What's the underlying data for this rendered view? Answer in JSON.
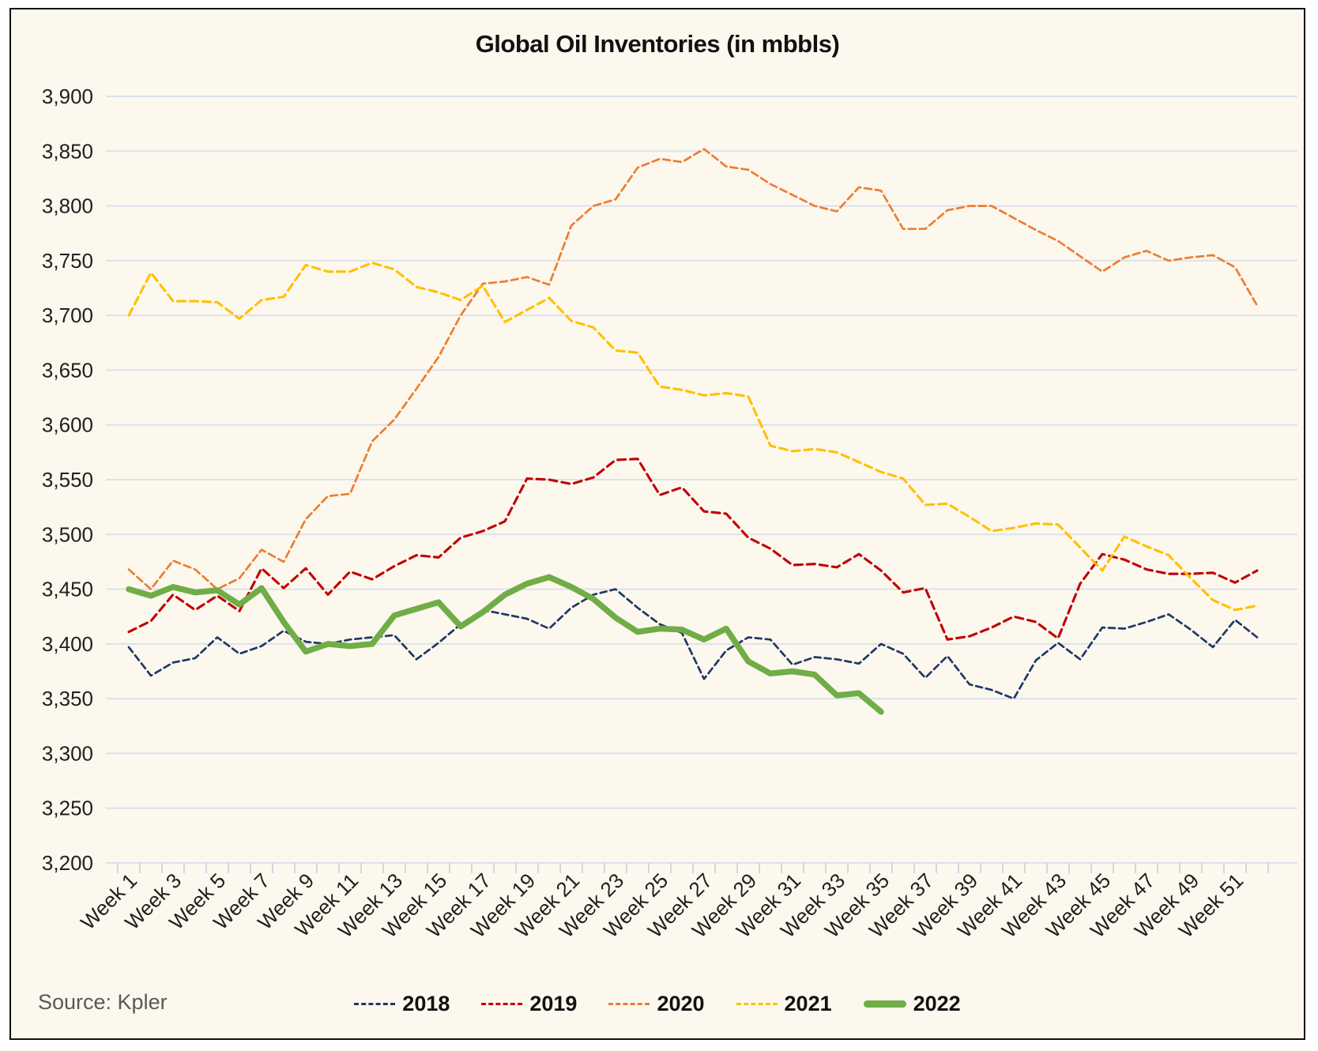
{
  "source_note": "Source: Kpler",
  "colors": {
    "background": "#FDF8EE",
    "border": "#111111",
    "gridline": "#DCE1EC",
    "tick": "#C9CEDA",
    "axis_text": "#1F1F1F",
    "title_text": "#111111",
    "source_text": "#595959"
  },
  "chart_data": {
    "type": "line",
    "title": "Global Oil Inventories (in mbbls)",
    "xlabel": "",
    "ylabel": "",
    "ylim": [
      3200,
      3900
    ],
    "ytick_step": 50,
    "grid": true,
    "legend_position": "bottom",
    "x_label_interval": 2,
    "x_categories": [
      "Week 1",
      "Week 2",
      "Week 3",
      "Week 4",
      "Week 5",
      "Week 6",
      "Week 7",
      "Week 8",
      "Week 9",
      "Week 10",
      "Week 11",
      "Week 12",
      "Week 13",
      "Week 14",
      "Week 15",
      "Week 16",
      "Week 17",
      "Week 18",
      "Week 19",
      "Week 20",
      "Week 21",
      "Week 22",
      "Week 23",
      "Week 24",
      "Week 25",
      "Week 26",
      "Week 27",
      "Week 28",
      "Week 29",
      "Week 30",
      "Week 31",
      "Week 32",
      "Week 33",
      "Week 34",
      "Week 35",
      "Week 36",
      "Week 37",
      "Week 38",
      "Week 39",
      "Week 40",
      "Week 41",
      "Week 42",
      "Week 43",
      "Week 44",
      "Week 45",
      "Week 46",
      "Week 47",
      "Week 48",
      "Week 49",
      "Week 50",
      "Week 51",
      "Week 52"
    ],
    "series": [
      {
        "name": "2018",
        "color": "#1F3864",
        "style": "dashed",
        "width": 2.7,
        "dash": "8 5",
        "values": [
          3397,
          3371,
          3383,
          3387,
          3406,
          3391,
          3398,
          3412,
          3402,
          3400,
          3404,
          3406,
          3408,
          3386,
          3401,
          3418,
          3431,
          3427,
          3423,
          3414,
          3433,
          3445,
          3450,
          3433,
          3418,
          3410,
          3368,
          3394,
          3406,
          3404,
          3381,
          3388,
          3386,
          3382,
          3400,
          3391,
          3369,
          3389,
          3363,
          3358,
          3350,
          3385,
          3401,
          3386,
          3415,
          3414,
          3420,
          3427,
          3413,
          3397,
          3422,
          3406
        ]
      },
      {
        "name": "2019",
        "color": "#C00000",
        "style": "dashed",
        "width": 3.1,
        "dash": "10 6",
        "values": [
          3411,
          3421,
          3445,
          3431,
          3444,
          3430,
          3469,
          3451,
          3469,
          3445,
          3466,
          3459,
          3471,
          3481,
          3479,
          3497,
          3503,
          3512,
          3551,
          3550,
          3546,
          3552,
          3568,
          3569,
          3536,
          3543,
          3521,
          3519,
          3497,
          3487,
          3472,
          3473,
          3470,
          3482,
          3467,
          3447,
          3451,
          3404,
          3407,
          3415,
          3425,
          3420,
          3405,
          3455,
          3482,
          3477,
          3468,
          3464,
          3464,
          3465,
          3456,
          3467
        ]
      },
      {
        "name": "2020",
        "color": "#ED7D31",
        "style": "dashed",
        "width": 2.7,
        "dash": "9 5",
        "values": [
          3468,
          3450,
          3476,
          3468,
          3450,
          3460,
          3486,
          3475,
          3514,
          3535,
          3537,
          3585,
          3605,
          3633,
          3662,
          3700,
          3729,
          3731,
          3735,
          3728,
          3782,
          3800,
          3806,
          3835,
          3843,
          3840,
          3852,
          3836,
          3833,
          3820,
          3810,
          3800,
          3795,
          3817,
          3814,
          3779,
          3779,
          3796,
          3800,
          3800,
          3789,
          3778,
          3768,
          3754,
          3740,
          3753,
          3759,
          3750,
          3753,
          3755,
          3744,
          3709
        ]
      },
      {
        "name": "2021",
        "color": "#FFC000",
        "style": "dashed",
        "width": 3.1,
        "dash": "10 6",
        "values": [
          3700,
          3739,
          3713,
          3713,
          3712,
          3697,
          3714,
          3717,
          3746,
          3740,
          3740,
          3748,
          3742,
          3726,
          3721,
          3714,
          3727,
          3694,
          3705,
          3716,
          3695,
          3689,
          3668,
          3666,
          3635,
          3632,
          3627,
          3629,
          3626,
          3581,
          3576,
          3578,
          3575,
          3566,
          3557,
          3551,
          3527,
          3528,
          3516,
          3503,
          3506,
          3510,
          3509,
          3488,
          3467,
          3498,
          3489,
          3481,
          3460,
          3440,
          3431,
          3435
        ]
      },
      {
        "name": "2022",
        "color": "#70AD47",
        "style": "solid",
        "width": 7.5,
        "dash": null,
        "values": [
          3450,
          3444,
          3452,
          3447,
          3449,
          3436,
          3451,
          3420,
          3393,
          3400,
          3398,
          3400,
          3426,
          3432,
          3438,
          3416,
          3429,
          3445,
          3455,
          3461,
          3452,
          3441,
          3424,
          3411,
          3414,
          3413,
          3404,
          3414,
          3384,
          3373,
          3375,
          3372,
          3353,
          3355,
          3338
        ]
      }
    ]
  }
}
